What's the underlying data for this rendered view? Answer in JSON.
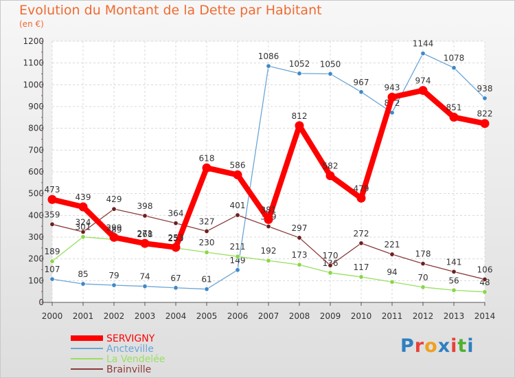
{
  "title": "Evolution du Montant de la Dette par Habitant",
  "unit": "(en €)",
  "logo": [
    "P",
    "r",
    "o",
    "x",
    "i",
    "t",
    "i"
  ],
  "colors": {
    "title": "#f06a30",
    "logo": [
      "#2e7fc0",
      "#e8403a",
      "#f0a020",
      "#2e7fc0",
      "#e8403a",
      "#50b030",
      "#2e7fc0"
    ]
  },
  "chart_data": {
    "type": "line",
    "x": [
      "2000",
      "2001",
      "2002",
      "2003",
      "2004",
      "2005",
      "2006",
      "2007",
      "2008",
      "2009",
      "2010",
      "2011",
      "2012",
      "2013",
      "2014"
    ],
    "ylim": [
      0,
      1200
    ],
    "yticks": [
      0,
      100,
      200,
      300,
      400,
      500,
      600,
      700,
      800,
      900,
      1000,
      1100,
      1200
    ],
    "grid": true,
    "legend_position": "bottom-left",
    "series": [
      {
        "name": "Ancteville",
        "color": "#6aa5d6",
        "marker": "#3f88c8",
        "values": [
          107,
          85,
          79,
          74,
          67,
          61,
          149,
          1086,
          1052,
          1050,
          967,
          872,
          1144,
          1078,
          938
        ]
      },
      {
        "name": "La Vendelée",
        "color": "#98e060",
        "marker": "#8bd64a",
        "values": [
          189,
          301,
          289,
          268,
          250,
          230,
          211,
          192,
          173,
          136,
          117,
          94,
          70,
          56,
          48
        ]
      },
      {
        "name": "Brainville",
        "color": "#8a3a3a",
        "marker": "#6d1f1f",
        "values": [
          359,
          324,
          429,
          398,
          364,
          327,
          401,
          349,
          297,
          170,
          272,
          221,
          178,
          141,
          106
        ]
      },
      {
        "name": "SERVIGNY",
        "color": "#ff0000",
        "marker": "#ff0000",
        "values": [
          473,
          439,
          299,
          271,
          253,
          618,
          586,
          381,
          812,
          582,
          479,
          943,
          974,
          851,
          822
        ]
      }
    ]
  }
}
